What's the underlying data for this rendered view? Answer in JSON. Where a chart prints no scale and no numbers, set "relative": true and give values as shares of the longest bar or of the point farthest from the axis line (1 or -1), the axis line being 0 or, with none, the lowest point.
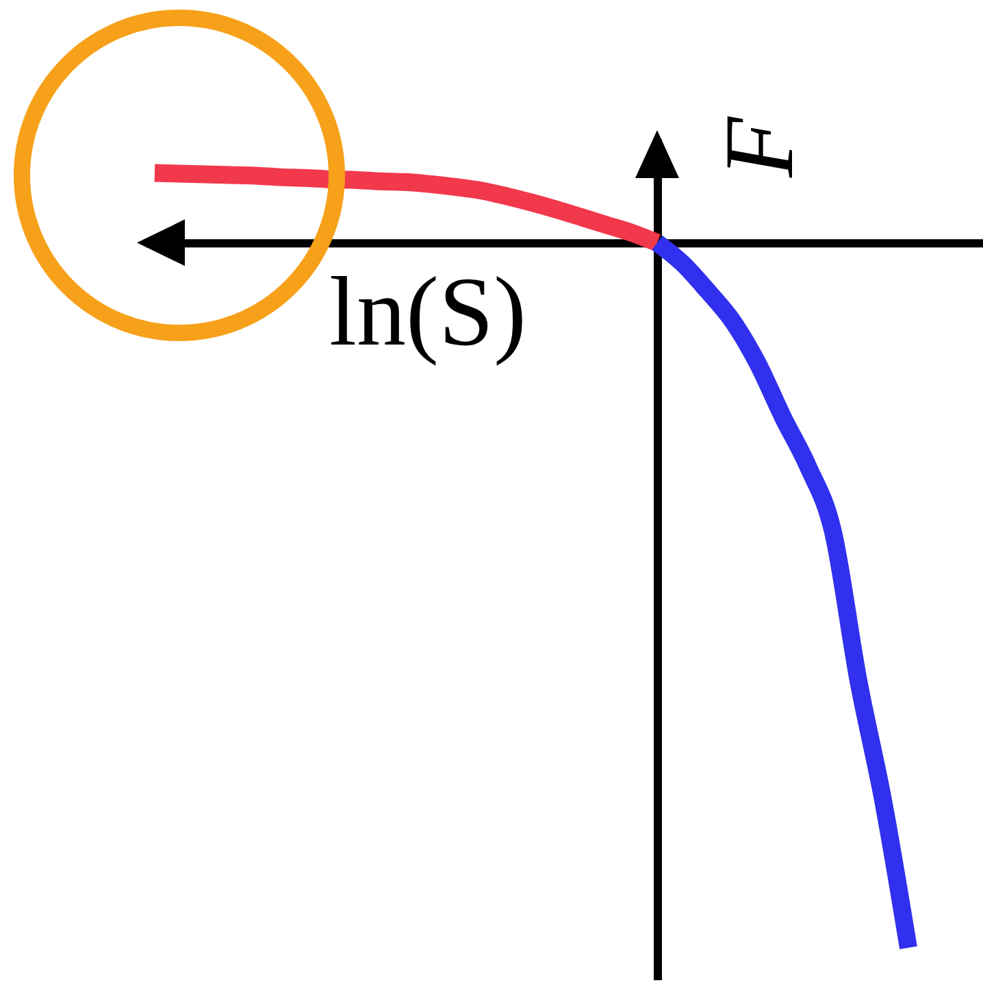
{
  "chart_data": {
    "type": "line",
    "xlabel": "ln(S)",
    "ylabel": "F",
    "relative": true,
    "categories": [
      null,
      null,
      null,
      null,
      null,
      null,
      null,
      null,
      null,
      null,
      null,
      null,
      null,
      null,
      null,
      null,
      null,
      null,
      null,
      null,
      null,
      null,
      null,
      null,
      null,
      null,
      null,
      null,
      null,
      null,
      null
    ],
    "series": [
      {
        "color": "#f2384b",
        "values": [
          0.099,
          0.098,
          0.097,
          0.096,
          0.095,
          0.093,
          0.092,
          0.09,
          0.089,
          0.087,
          0.086,
          0.083,
          0.079,
          0.074,
          0.066,
          0.057,
          0.047,
          0.036,
          0.025,
          0.014,
          0,
          null,
          null,
          null,
          null,
          null,
          null,
          null,
          null,
          null,
          null
        ]
      },
      {
        "color": "#3030ee",
        "values": [
          null,
          null,
          null,
          null,
          null,
          null,
          null,
          null,
          null,
          null,
          null,
          null,
          null,
          null,
          null,
          null,
          null,
          null,
          null,
          null,
          0,
          -0.029,
          -0.068,
          -0.111,
          -0.171,
          -0.247,
          -0.317,
          -0.41,
          -0.619,
          -0.792,
          -1
        ]
      }
    ]
  }
}
